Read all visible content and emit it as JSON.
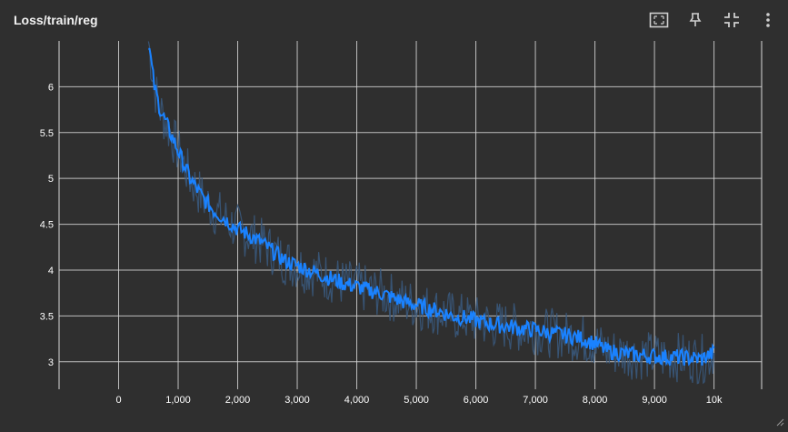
{
  "card": {
    "title": "Loss/train/reg"
  },
  "toolbar": {
    "icons": [
      "fit-domain-icon",
      "pin-icon",
      "collapse-icon",
      "more-vert-icon"
    ]
  },
  "colors": {
    "background": "#2f2f2f",
    "grid": "#d8d8d8",
    "smoothed": "#1a82ff",
    "raw": "#3a5a80"
  },
  "chart_data": {
    "type": "line",
    "title": "Loss/train/reg",
    "xlabel": "",
    "ylabel": "",
    "xlim": [
      -1000,
      10800
    ],
    "ylim": [
      2.7,
      6.5
    ],
    "x_ticks": [
      0,
      1000,
      2000,
      3000,
      4000,
      5000,
      6000,
      7000,
      8000,
      9000,
      10000
    ],
    "x_tick_labels": [
      "0",
      "1,000",
      "2,000",
      "3,000",
      "4,000",
      "5,000",
      "6,000",
      "7,000",
      "8,000",
      "9,000",
      "10k"
    ],
    "y_ticks": [
      3,
      3.5,
      4,
      4.5,
      5,
      5.5,
      6
    ],
    "y_tick_labels": [
      "3",
      "3.5",
      "4",
      "4.5",
      "5",
      "5.5",
      "6"
    ],
    "grid": true,
    "series": [
      {
        "smoothed": true,
        "x": [
          500,
          600,
          700,
          800,
          900,
          1000,
          1100,
          1200,
          1300,
          1400,
          1500,
          1600,
          1700,
          1800,
          1900,
          2000,
          2200,
          2400,
          2600,
          2800,
          3000,
          3200,
          3400,
          3600,
          3800,
          4000,
          4200,
          4400,
          4600,
          4800,
          5000,
          5200,
          5400,
          5600,
          5800,
          6000,
          6200,
          6400,
          6600,
          6800,
          7000,
          7200,
          7400,
          7600,
          7800,
          8000,
          8200,
          8400,
          8600,
          8800,
          9000,
          9200,
          9400,
          9600,
          9800,
          10000
        ],
        "values": [
          6.5,
          6.0,
          5.75,
          5.6,
          5.45,
          5.3,
          5.15,
          5.0,
          4.9,
          4.8,
          4.72,
          4.65,
          4.6,
          4.55,
          4.5,
          4.45,
          4.38,
          4.3,
          4.2,
          4.1,
          4.05,
          4.0,
          3.95,
          3.9,
          3.85,
          3.82,
          3.78,
          3.75,
          3.7,
          3.65,
          3.62,
          3.58,
          3.55,
          3.5,
          3.48,
          3.45,
          3.42,
          3.4,
          3.38,
          3.36,
          3.35,
          3.32,
          3.3,
          3.28,
          3.25,
          3.2,
          3.12,
          3.1,
          3.08,
          3.07,
          3.06,
          3.05,
          3.05,
          3.04,
          3.03,
          3.1
        ]
      }
    ]
  }
}
